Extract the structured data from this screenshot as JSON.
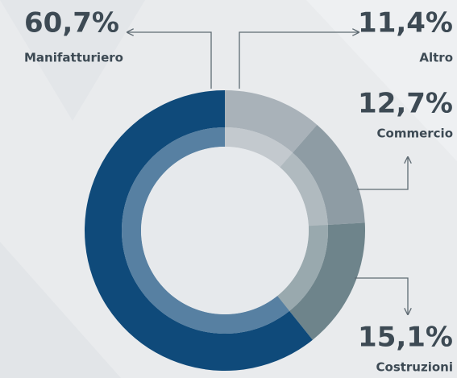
{
  "chart_data": {
    "type": "donut",
    "categories": [
      "Altro",
      "Commercio",
      "Costruzioni",
      "Manifatturiero"
    ],
    "values": [
      11.4,
      12.7,
      15.1,
      60.7
    ],
    "value_labels": [
      "11,4%",
      "12,7%",
      "15,1%",
      "60,7%"
    ],
    "colors": [
      "#a9b2b9",
      "#8e9ca4",
      "#6e848b",
      "#0f4a7a"
    ]
  }
}
